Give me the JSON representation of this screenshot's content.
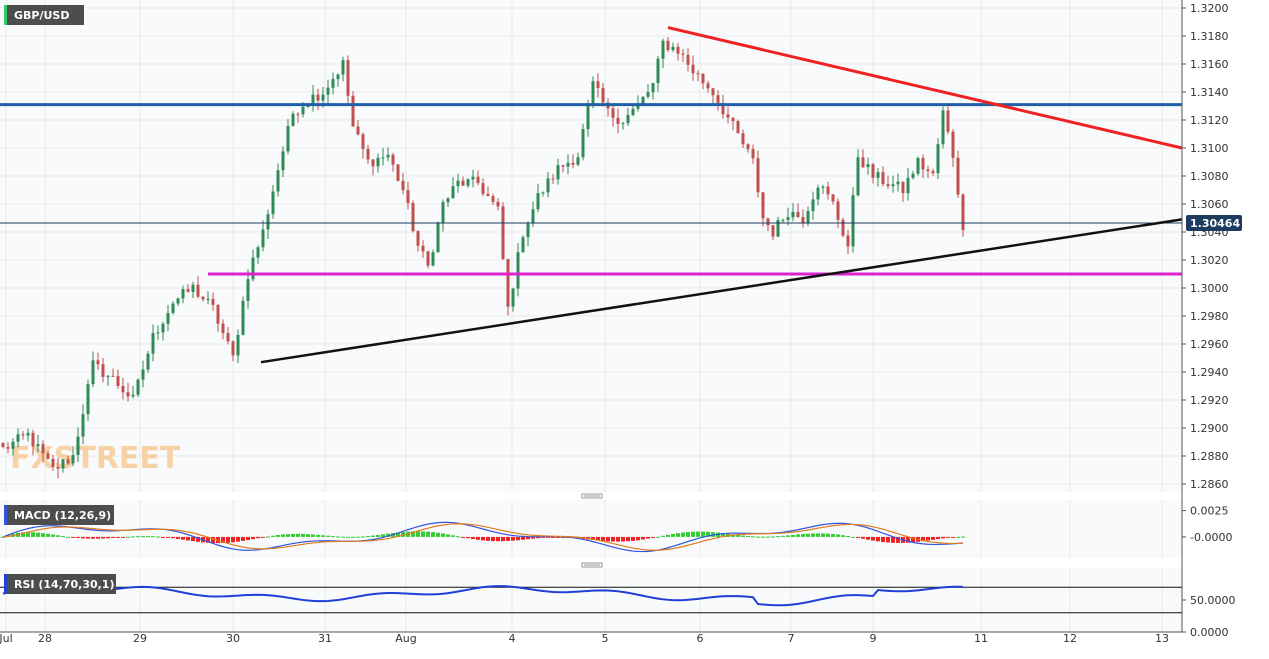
{
  "symbol": "GBP/USD",
  "watermark": "FXSTREET",
  "colors": {
    "background": "#ffffff",
    "plot_bg": "#f9fafb",
    "grid": "#e6e9ee",
    "candle_up": "#2e8b57",
    "candle_down": "#c0504d",
    "resistance_line": "#1f5fa8",
    "support_line": "#e020d0",
    "desc_trend": "#ee2222",
    "asc_trend": "#111111",
    "price_badge": "#1d3a5f",
    "macd_line": "#3355dd",
    "macd_signal": "#e07b20",
    "hist_pos": "#33cc33",
    "hist_neg": "#ee2222",
    "rsi_line": "#1f3fd6"
  },
  "last_price_label": "1.30464",
  "chart_data": {
    "type": "candlestick",
    "title": "GBP/USD",
    "y_ticks": [
      "1.3200",
      "1.3180",
      "1.3160",
      "1.3140",
      "1.3120",
      "1.3100",
      "1.3080",
      "1.3060",
      "1.3040",
      "1.3020",
      "1.3000",
      "1.2980",
      "1.2960",
      "1.2940",
      "1.2920",
      "1.2900",
      "1.2880",
      "1.2860"
    ],
    "ylim": [
      1.2855,
      1.3205
    ],
    "x_labels": [
      "Jul",
      "28",
      "29",
      "30",
      "31",
      "Aug",
      "4",
      "5",
      "6",
      "7",
      "9",
      "11",
      "12",
      "13"
    ],
    "last_price": 1.30464,
    "horizontal_levels": [
      {
        "name": "resistance",
        "value": 1.3131
      },
      {
        "name": "support",
        "value": 1.301
      }
    ],
    "trendlines": [
      {
        "name": "descending",
        "from_index": 133,
        "from": 1.3186,
        "to_index": 215,
        "to": 1.31
      },
      {
        "name": "ascending",
        "from_index": 46,
        "from": 1.2947,
        "to_index": 215,
        "to": 1.3049
      }
    ],
    "candle_anchors": [
      [
        0,
        1.2885
      ],
      [
        5,
        1.2895
      ],
      [
        10,
        1.287
      ],
      [
        14,
        1.288
      ],
      [
        18,
        1.2945
      ],
      [
        22,
        1.2935
      ],
      [
        26,
        1.292
      ],
      [
        30,
        1.2965
      ],
      [
        34,
        1.299
      ],
      [
        38,
        1.3
      ],
      [
        42,
        1.2985
      ],
      [
        46,
        1.295
      ],
      [
        49,
        1.301
      ],
      [
        52,
        1.304
      ],
      [
        55,
        1.3085
      ],
      [
        58,
        1.3125
      ],
      [
        61,
        1.3135
      ],
      [
        64,
        1.314
      ],
      [
        68,
        1.316
      ],
      [
        70,
        1.3115
      ],
      [
        73,
        1.309
      ],
      [
        77,
        1.3095
      ],
      [
        80,
        1.307
      ],
      [
        83,
        1.303
      ],
      [
        85,
        1.3015
      ],
      [
        88,
        1.306
      ],
      [
        91,
        1.3075
      ],
      [
        95,
        1.3075
      ],
      [
        99,
        1.3055
      ],
      [
        101,
        1.2985
      ],
      [
        104,
        1.304
      ],
      [
        107,
        1.3065
      ],
      [
        111,
        1.3085
      ],
      [
        115,
        1.3095
      ],
      [
        118,
        1.3145
      ],
      [
        121,
        1.3125
      ],
      [
        124,
        1.312
      ],
      [
        127,
        1.313
      ],
      [
        130,
        1.3145
      ],
      [
        132,
        1.3175
      ],
      [
        135,
        1.317
      ],
      [
        138,
        1.3155
      ],
      [
        142,
        1.314
      ],
      [
        146,
        1.3115
      ],
      [
        150,
        1.309
      ],
      [
        152,
        1.305
      ],
      [
        154,
        1.304
      ],
      [
        157,
        1.3055
      ],
      [
        160,
        1.305
      ],
      [
        163,
        1.3075
      ],
      [
        166,
        1.306
      ],
      [
        169,
        1.303
      ],
      [
        171,
        1.3095
      ],
      [
        174,
        1.308
      ],
      [
        177,
        1.3075
      ],
      [
        180,
        1.307
      ],
      [
        183,
        1.309
      ],
      [
        186,
        1.308
      ],
      [
        188,
        1.3125
      ],
      [
        190,
        1.3095
      ],
      [
        192,
        1.3045
      ]
    ],
    "macd": {
      "label": "MACD (12,26,9)",
      "y_ticks": [
        "0.0025",
        "-0.0000"
      ],
      "ylim": [
        -0.002,
        0.0035
      ]
    },
    "rsi": {
      "label": "RSI (14,70,30,1)",
      "y_ticks": [
        "50.0000",
        "0.0000"
      ],
      "ylim": [
        0,
        100
      ],
      "levels": [
        70,
        30
      ]
    }
  }
}
